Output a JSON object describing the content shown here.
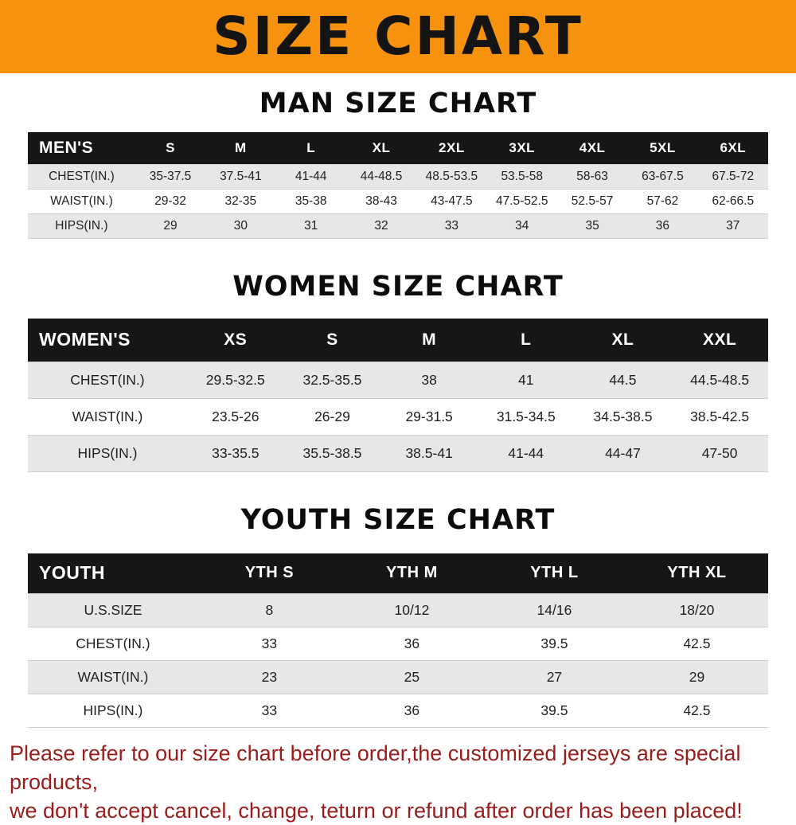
{
  "banner": {
    "title": "SIZE CHART",
    "background_color": "#f6920e",
    "text_color": "#141414"
  },
  "chart_data": [
    {
      "type": "table",
      "title": "MAN SIZE CHART",
      "header": [
        "MEN'S",
        "S",
        "M",
        "L",
        "XL",
        "2XL",
        "3XL",
        "4XL",
        "5XL",
        "6XL"
      ],
      "rows": [
        [
          "CHEST(IN.)",
          "35-37.5",
          "37.5-41",
          "41-44",
          "44-48.5",
          "48.5-53.5",
          "53.5-58",
          "58-63",
          "63-67.5",
          "67.5-72"
        ],
        [
          "WAIST(IN.)",
          "29-32",
          "32-35",
          "35-38",
          "38-43",
          "43-47.5",
          "47.5-52.5",
          "52.5-57",
          "57-62",
          "62-66.5"
        ],
        [
          "HIPS(IN.)",
          "29",
          "30",
          "31",
          "32",
          "33",
          "34",
          "35",
          "36",
          "37"
        ]
      ]
    },
    {
      "type": "table",
      "title": "WOMEN SIZE CHART",
      "header": [
        "WOMEN'S",
        "XS",
        "S",
        "M",
        "L",
        "XL",
        "XXL"
      ],
      "rows": [
        [
          "CHEST(IN.)",
          "29.5-32.5",
          "32.5-35.5",
          "38",
          "41",
          "44.5",
          "44.5-48.5"
        ],
        [
          "WAIST(IN.)",
          "23.5-26",
          "26-29",
          "29-31.5",
          "31.5-34.5",
          "34.5-38.5",
          "38.5-42.5"
        ],
        [
          "HIPS(IN.)",
          "33-35.5",
          "35.5-38.5",
          "38.5-41",
          "41-44",
          "44-47",
          "47-50"
        ]
      ]
    },
    {
      "type": "table",
      "title": "YOUTH SIZE CHART",
      "header": [
        "YOUTH",
        "YTH S",
        "YTH M",
        "YTH L",
        "YTH XL"
      ],
      "rows": [
        [
          "U.S.SIZE",
          "8",
          "10/12",
          "14/16",
          "18/20"
        ],
        [
          "CHEST(IN.)",
          "33",
          "36",
          "39.5",
          "42.5"
        ],
        [
          "WAIST(IN.)",
          "23",
          "25",
          "27",
          "29"
        ],
        [
          "HIPS(IN.)",
          "33",
          "36",
          "39.5",
          "42.5"
        ]
      ]
    }
  ],
  "footer": {
    "line1": "Please refer to our size chart before order,the customized jerseys are special products,",
    "line2": "we don't accept cancel, change, teturn or refund after order has been placed!",
    "text_color": "#9e1b1b"
  }
}
